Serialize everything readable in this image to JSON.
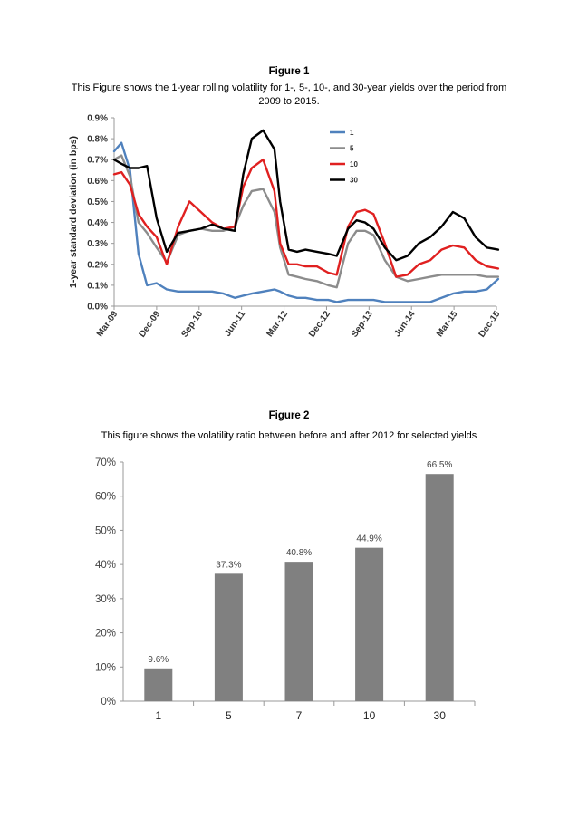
{
  "figures": [
    {
      "title": "Figure 1",
      "caption": "This Figure shows the 1-year rolling volatility for 1-, 5-, 10-, and 30-year yields over the period from 2009 to 2015."
    },
    {
      "title": "Figure 2",
      "caption": "This figure shows the volatility ratio between before and after 2012 for selected yields"
    }
  ],
  "chart_data": [
    {
      "type": "line",
      "ylabel": "1-year standard deviation (in bps)",
      "xlabel": "",
      "x_tick_labels": [
        "Mar-09",
        "Dec-09",
        "Sep-10",
        "Jun-11",
        "Mar-12",
        "Dec-12",
        "Sep-13",
        "Jun-14",
        "Mar-15",
        "Dec-15"
      ],
      "ylim": [
        0,
        0.9
      ],
      "y_tick_labels": [
        "0.0%",
        "0.1%",
        "0.2%",
        "0.3%",
        "0.4%",
        "0.5%",
        "0.6%",
        "0.7%",
        "0.8%",
        "0.9%"
      ],
      "legend_position": "top-right",
      "x": [
        2009.17,
        2009.3,
        2009.45,
        2009.6,
        2009.75,
        2009.92,
        2010.1,
        2010.3,
        2010.5,
        2010.7,
        2010.9,
        2011.1,
        2011.3,
        2011.45,
        2011.6,
        2011.8,
        2012.0,
        2012.1,
        2012.25,
        2012.4,
        2012.55,
        2012.75,
        2012.95,
        2013.1,
        2013.3,
        2013.45,
        2013.6,
        2013.75,
        2013.95,
        2014.15,
        2014.35,
        2014.55,
        2014.75,
        2014.95,
        2015.15,
        2015.35,
        2015.55,
        2015.75,
        2015.95
      ],
      "series": [
        {
          "name": "1",
          "color": "#4f81bd",
          "values": [
            0.74,
            0.78,
            0.65,
            0.25,
            0.1,
            0.11,
            0.08,
            0.07,
            0.07,
            0.07,
            0.07,
            0.06,
            0.04,
            0.05,
            0.06,
            0.07,
            0.08,
            0.07,
            0.05,
            0.04,
            0.04,
            0.03,
            0.03,
            0.02,
            0.03,
            0.03,
            0.03,
            0.03,
            0.02,
            0.02,
            0.02,
            0.02,
            0.02,
            0.04,
            0.06,
            0.07,
            0.07,
            0.08,
            0.13
          ]
        },
        {
          "name": "5",
          "color": "#8c8c8c",
          "values": [
            0.7,
            0.72,
            0.62,
            0.4,
            0.35,
            0.28,
            0.21,
            0.34,
            0.36,
            0.37,
            0.36,
            0.36,
            0.38,
            0.48,
            0.55,
            0.56,
            0.45,
            0.28,
            0.15,
            0.14,
            0.13,
            0.12,
            0.1,
            0.09,
            0.3,
            0.36,
            0.36,
            0.34,
            0.22,
            0.14,
            0.12,
            0.13,
            0.14,
            0.15,
            0.15,
            0.15,
            0.15,
            0.14,
            0.14
          ]
        },
        {
          "name": "10",
          "color": "#e02020",
          "values": [
            0.63,
            0.64,
            0.58,
            0.44,
            0.38,
            0.33,
            0.2,
            0.38,
            0.5,
            0.45,
            0.4,
            0.37,
            0.38,
            0.57,
            0.66,
            0.7,
            0.55,
            0.3,
            0.2,
            0.2,
            0.19,
            0.19,
            0.16,
            0.15,
            0.38,
            0.45,
            0.46,
            0.44,
            0.3,
            0.14,
            0.15,
            0.2,
            0.22,
            0.27,
            0.29,
            0.28,
            0.22,
            0.19,
            0.18
          ]
        },
        {
          "name": "30",
          "color": "#000000",
          "values": [
            0.7,
            0.68,
            0.66,
            0.66,
            0.67,
            0.42,
            0.26,
            0.35,
            0.36,
            0.37,
            0.39,
            0.37,
            0.36,
            0.63,
            0.8,
            0.84,
            0.75,
            0.5,
            0.27,
            0.26,
            0.27,
            0.26,
            0.25,
            0.24,
            0.37,
            0.41,
            0.4,
            0.37,
            0.28,
            0.22,
            0.24,
            0.3,
            0.33,
            0.38,
            0.45,
            0.42,
            0.33,
            0.28,
            0.27
          ]
        }
      ]
    },
    {
      "type": "bar",
      "categories": [
        "1",
        "5",
        "7",
        "10",
        "30"
      ],
      "values": [
        9.6,
        37.3,
        40.8,
        44.9,
        66.5
      ],
      "data_labels": [
        "9.6%",
        "37.3%",
        "40.8%",
        "44.9%",
        "66.5%"
      ],
      "ylim": [
        0,
        70
      ],
      "y_tick_labels": [
        "0%",
        "10%",
        "20%",
        "30%",
        "40%",
        "50%",
        "60%",
        "70%"
      ],
      "bar_color": "#808080",
      "grid": false
    }
  ]
}
